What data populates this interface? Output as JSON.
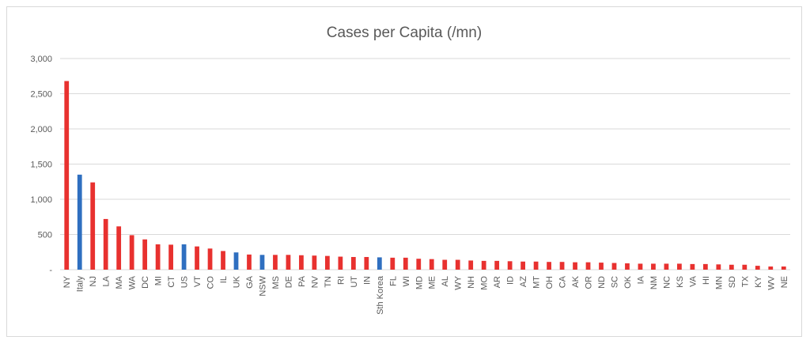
{
  "chart_data": {
    "type": "bar",
    "title": "Cases per Capita (/mn)",
    "xlabel": "",
    "ylabel": "",
    "ylim": [
      0,
      3000
    ],
    "yticks": [
      0,
      500,
      1000,
      1500,
      2000,
      2500,
      3000
    ],
    "ytick_labels": [
      "-",
      "500",
      "1,000",
      "1,500",
      "2,000",
      "2,500",
      "3,000"
    ],
    "grid": true,
    "legend": "none",
    "colors": {
      "us_state": "#e8312f",
      "other": "#2f6fc0"
    },
    "categories": [
      "NY",
      "Italy",
      "NJ",
      "LA",
      "MA",
      "WA",
      "DC",
      "MI",
      "CT",
      "US",
      "VT",
      "CO",
      "IL",
      "UK",
      "GA",
      "NSW",
      "MS",
      "DE",
      "PA",
      "NV",
      "TN",
      "RI",
      "UT",
      "IN",
      "Sth Korea",
      "FL",
      "WI",
      "MD",
      "ME",
      "AL",
      "WY",
      "NH",
      "MO",
      "AR",
      "ID",
      "AZ",
      "MT",
      "OH",
      "CA",
      "AK",
      "OR",
      "ND",
      "SC",
      "OK",
      "IA",
      "NM",
      "NC",
      "KS",
      "VA",
      "HI",
      "MN",
      "SD",
      "TX",
      "KY",
      "WV",
      "NE"
    ],
    "values": [
      2680,
      1350,
      1240,
      720,
      615,
      490,
      430,
      360,
      355,
      360,
      330,
      300,
      265,
      245,
      215,
      210,
      210,
      210,
      205,
      200,
      195,
      185,
      180,
      180,
      175,
      170,
      170,
      155,
      150,
      140,
      140,
      130,
      125,
      125,
      120,
      115,
      115,
      110,
      110,
      105,
      105,
      100,
      95,
      90,
      85,
      85,
      85,
      85,
      80,
      80,
      75,
      70,
      70,
      55,
      45,
      45
    ],
    "highlight": [
      "Italy",
      "US",
      "UK",
      "NSW",
      "Sth Korea"
    ]
  }
}
